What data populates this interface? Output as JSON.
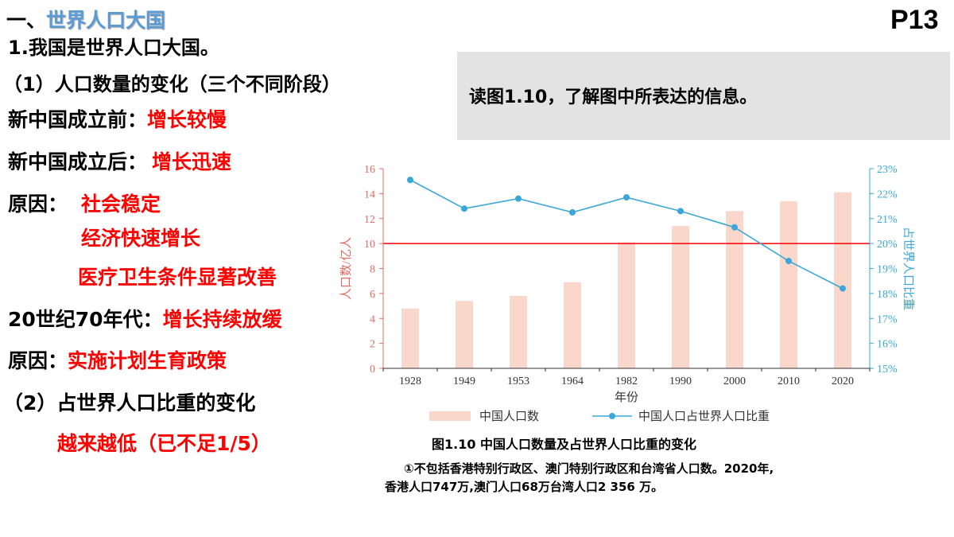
{
  "header": {
    "section_prefix": "一、",
    "section_title": "世界人口大国",
    "page_number": "P13"
  },
  "left": {
    "point1": "1.我国是世界人口大国。",
    "sub1": "（1）人口数量的变化（三个不同阶段）",
    "before_label": "新中国成立前：",
    "before_value": "增长较慢",
    "after_label": "新中国成立后：",
    "after_value": "增长迅速",
    "reason_label": "原因：",
    "reasons": [
      "社会稳定",
      "经济快速增长",
      "医疗卫生条件显著改善"
    ],
    "seventies_label": "20世纪70年代：",
    "seventies_value": "增长持续放缓",
    "reason2_label": "原因：",
    "reason2_value": "实施计划生育政策",
    "sub2": "（2）占世界人口比重的变化",
    "sub2_value": "越来越低（已不足1/5）"
  },
  "prompt": {
    "text": "读图1.10，了解图中所表达的信息。"
  },
  "figure": {
    "caption": "图1.10 中国人口数量及占世界人口比重的变化",
    "note_line1": "①不包括香港特别行政区、澳门特别行政区和台湾省人口数。2020年,",
    "note_line2": "香港人口747万,澳门人口68万台湾人口2 356 万。"
  },
  "chart_data": {
    "type": "bar",
    "categories": [
      "1928",
      "1949",
      "1953",
      "1964",
      "1982",
      "1990",
      "2000",
      "2010",
      "2020"
    ],
    "xlabel": "年份",
    "ylabel_left": "人口数/亿人",
    "ylabel_right": "占世界人口比重",
    "ylim_left": [
      0,
      16
    ],
    "yticks_left": [
      "0",
      "2",
      "4",
      "6",
      "8",
      "10",
      "12",
      "14",
      "16"
    ],
    "ylim_right": [
      15,
      23
    ],
    "yticks_right": [
      "15%",
      "16%",
      "17%",
      "18%",
      "19%",
      "20%",
      "21%",
      "22%",
      "23%"
    ],
    "reference_line": {
      "axis": "left",
      "value": 10,
      "color": "#ff0000"
    },
    "series": [
      {
        "name": "中国人口数",
        "type": "bar",
        "axis": "left",
        "color": "#f9d8cb",
        "values": [
          4.8,
          5.4,
          5.8,
          6.9,
          10.1,
          11.4,
          12.6,
          13.4,
          14.1
        ]
      },
      {
        "name": "中国人口占世界人口比重",
        "type": "line",
        "axis": "right",
        "color": "#3aa7d8",
        "values": [
          22.55,
          21.4,
          21.8,
          21.25,
          21.85,
          21.3,
          20.65,
          19.3,
          18.2
        ]
      }
    ],
    "legend_position": "bottom",
    "axis_color_left": "#e06c63",
    "axis_color_right": "#3aa7d8"
  }
}
